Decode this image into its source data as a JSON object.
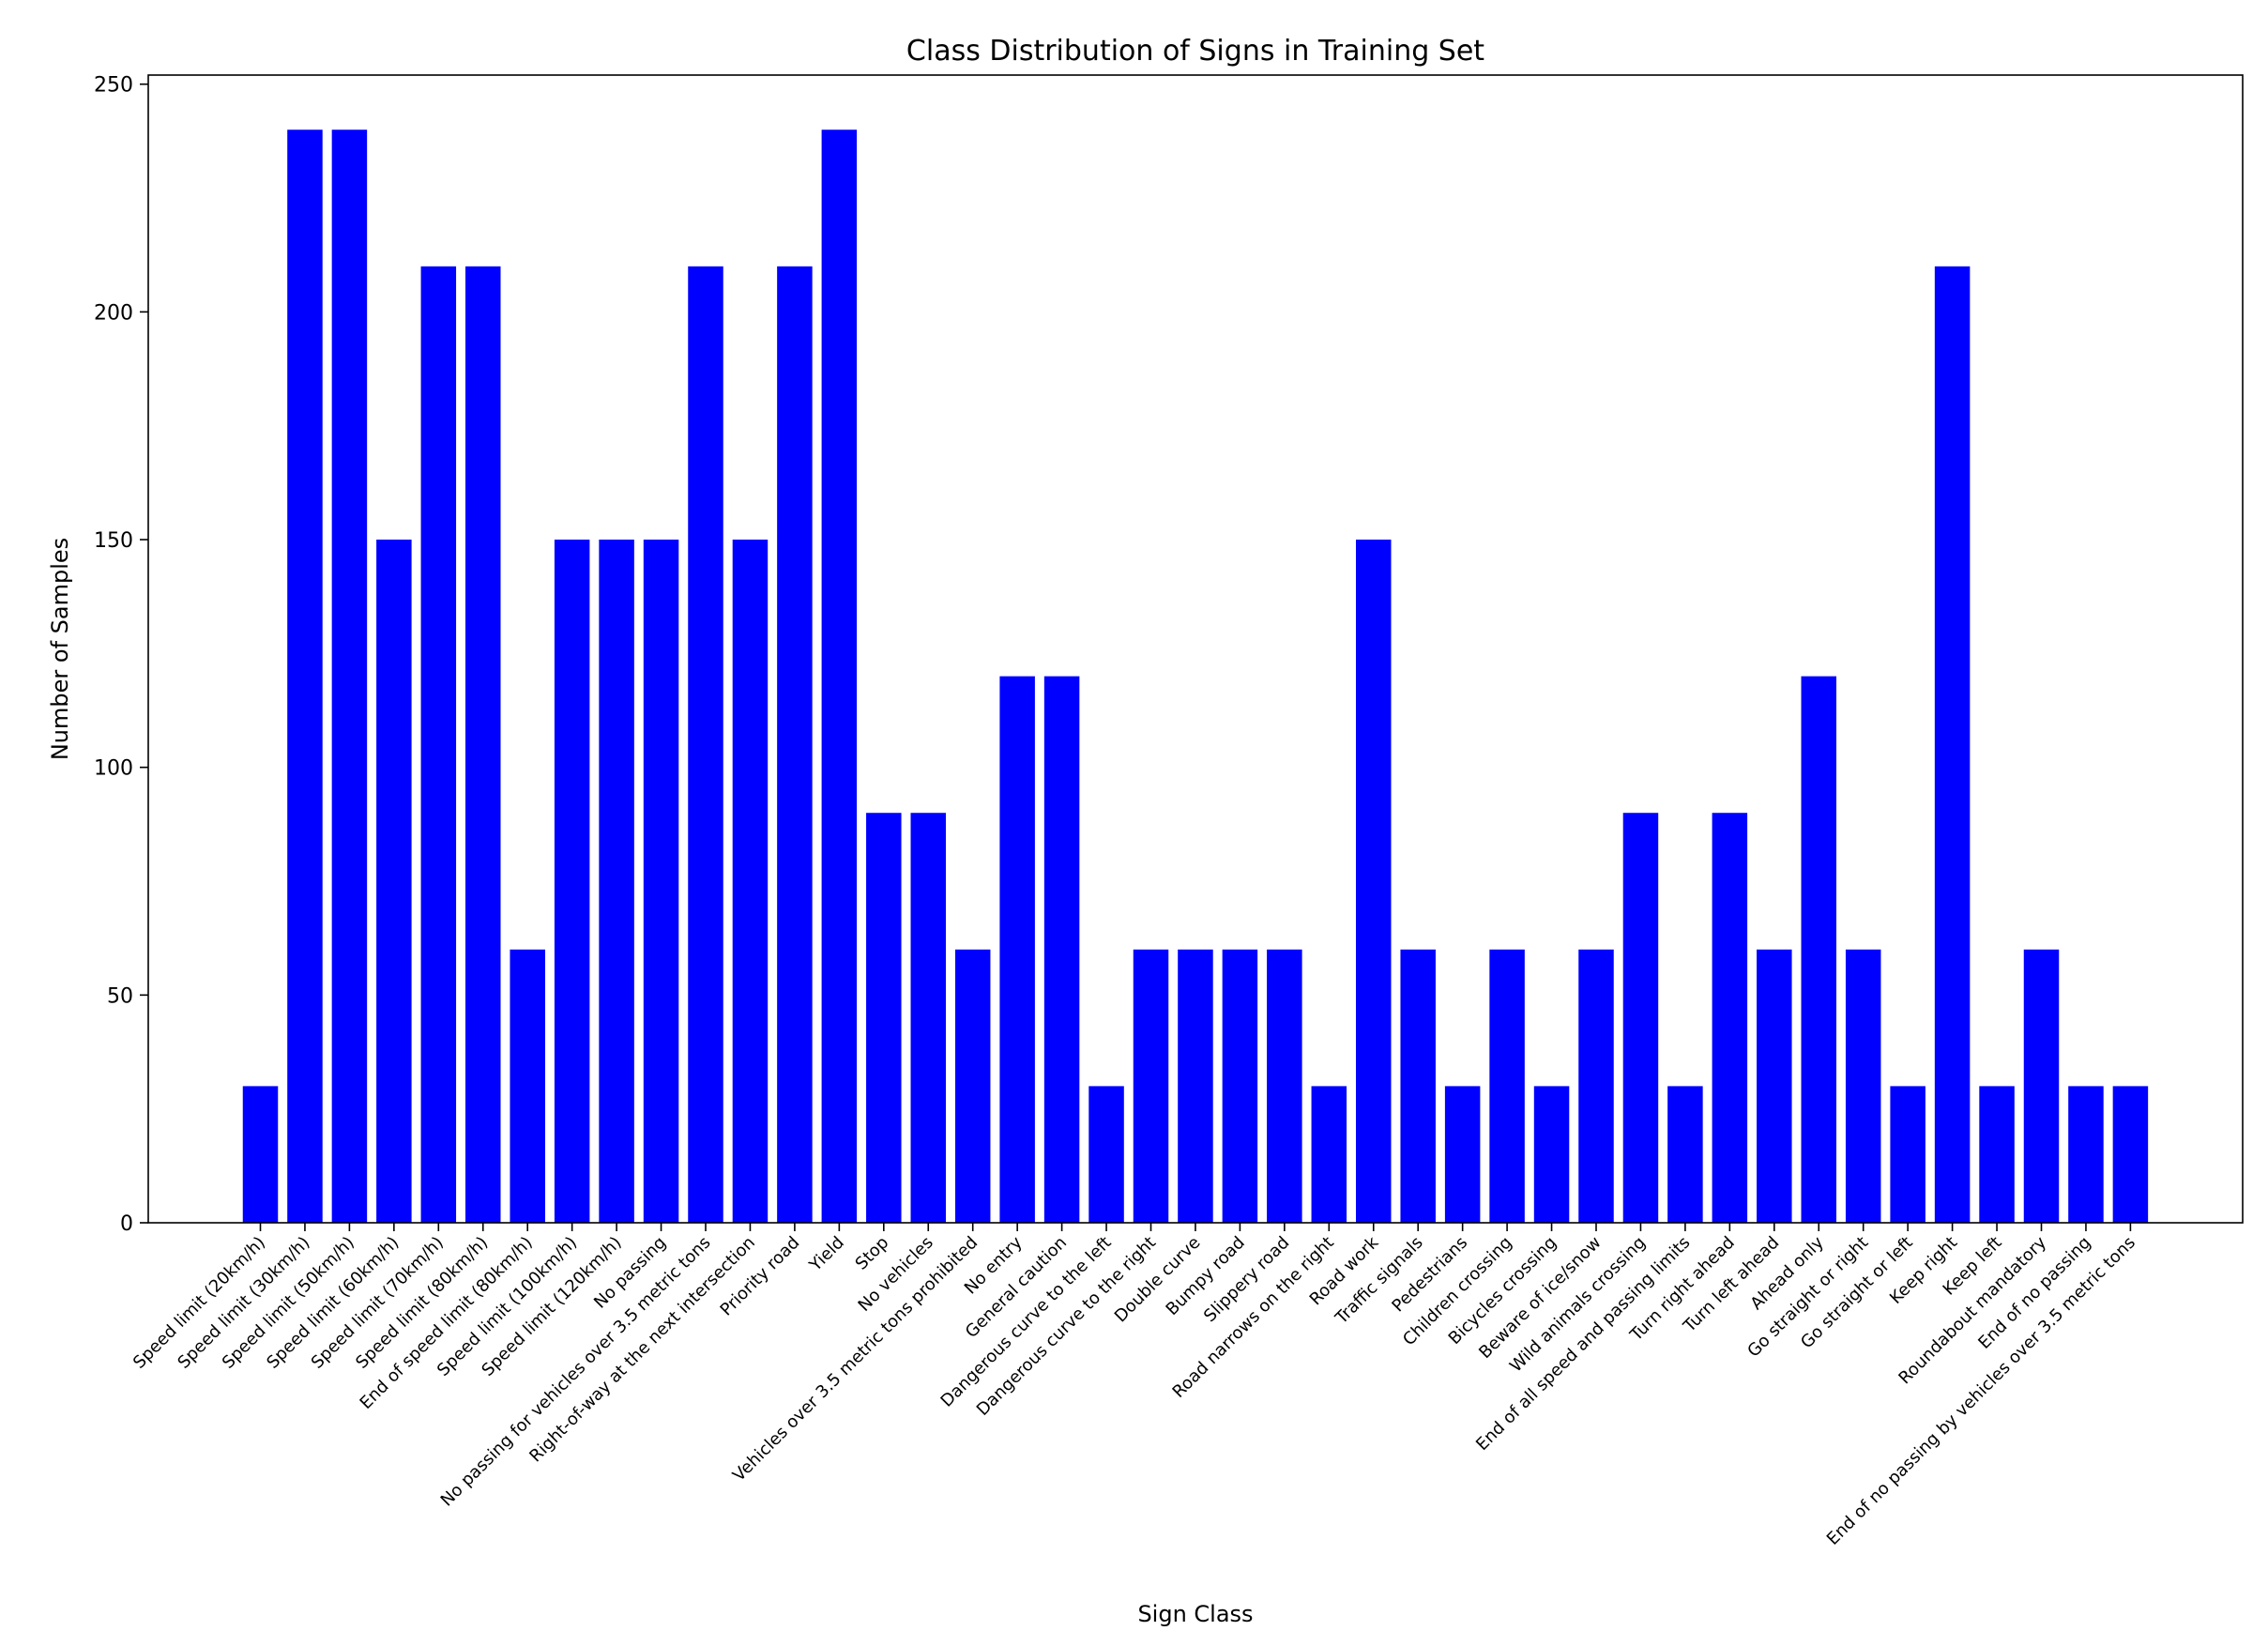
{
  "chart_data": {
    "type": "bar",
    "title": "Class Distribution of Signs in Training Set",
    "xlabel": "Sign Class",
    "ylabel": "Number of Samples",
    "ylim": [
      0,
      252
    ],
    "yticks": [
      0,
      50,
      100,
      150,
      200,
      250
    ],
    "bar_color": "#0000ff",
    "grid": false,
    "categories": [
      "Speed limit (20km/h)",
      "Speed limit (30km/h)",
      "Speed limit (50km/h)",
      "Speed limit (60km/h)",
      "Speed limit (70km/h)",
      "Speed limit (80km/h)",
      "End of speed limit (80km/h)",
      "Speed limit (100km/h)",
      "Speed limit (120km/h)",
      "No passing",
      "No passing for vehicles over 3.5 metric tons",
      "Right-of-way at the next intersection",
      "Priority road",
      "Yield",
      "Stop",
      "No vehicles",
      "Vehicles over 3.5 metric tons prohibited",
      "No entry",
      "General caution",
      "Dangerous curve to the left",
      "Dangerous curve to the right",
      "Double curve",
      "Bumpy road",
      "Slippery road",
      "Road narrows on the right",
      "Road work",
      "Traffic signals",
      "Pedestrians",
      "Children crossing",
      "Bicycles crossing",
      "Beware of ice/snow",
      "Wild animals crossing",
      "End of all speed and passing limits",
      "Turn right ahead",
      "Turn left ahead",
      "Ahead only",
      "Go straight or right",
      "Go straight or left",
      "Keep right",
      "Keep left",
      "Roundabout mandatory",
      "End of no passing",
      "End of no passing by vehicles over 3.5 metric tons"
    ],
    "values": [
      30,
      240,
      240,
      150,
      210,
      210,
      60,
      150,
      150,
      150,
      210,
      150,
      210,
      240,
      90,
      90,
      60,
      120,
      120,
      30,
      60,
      60,
      60,
      60,
      30,
      150,
      60,
      30,
      60,
      30,
      60,
      90,
      30,
      90,
      60,
      120,
      60,
      30,
      210,
      30,
      60,
      30,
      30
    ]
  }
}
